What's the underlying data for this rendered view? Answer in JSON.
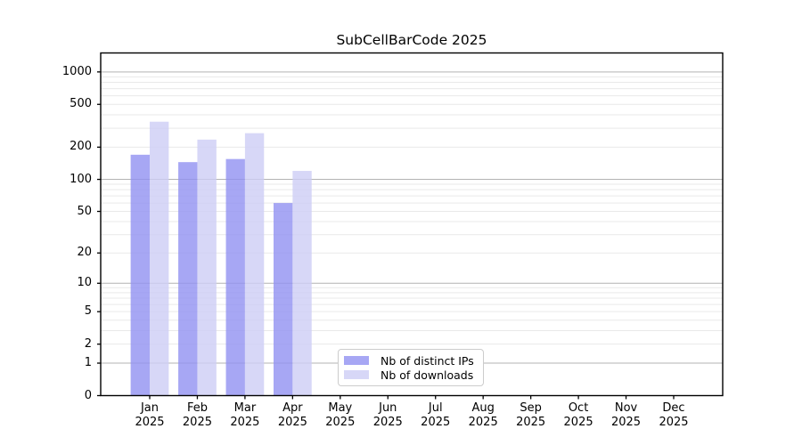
{
  "figure": {
    "title": "SubCellBarCode 2025"
  },
  "chart_data": {
    "type": "bar",
    "title": "SubCellBarCode 2025",
    "scale": "log1p",
    "categories": [
      "Jan",
      "Feb",
      "Mar",
      "Apr",
      "May",
      "Jun",
      "Jul",
      "Aug",
      "Sep",
      "Oct",
      "Nov",
      "Dec"
    ],
    "category_year": "2025",
    "series": [
      {
        "name": "Nb of distinct IPs",
        "color": "#9191f1",
        "alpha": 0.8,
        "values": [
          170,
          145,
          155,
          60,
          0,
          0,
          0,
          0,
          0,
          0,
          0,
          0
        ]
      },
      {
        "name": "Nb of downloads",
        "color": "#cdcdf5",
        "alpha": 0.8,
        "values": [
          345,
          235,
          270,
          120,
          0,
          0,
          0,
          0,
          0,
          0,
          0,
          0
        ]
      }
    ],
    "yticks": [
      0,
      1,
      2,
      5,
      10,
      20,
      50,
      100,
      200,
      500,
      1000
    ],
    "ylim": [
      0,
      1500
    ],
    "grid": {
      "major_ticks": [
        1,
        10,
        100,
        1000
      ],
      "major_color": "#b3b3b3",
      "minor_color": "#e9e9e9"
    },
    "legend_position": "lower center",
    "axis_color": "#000000"
  }
}
